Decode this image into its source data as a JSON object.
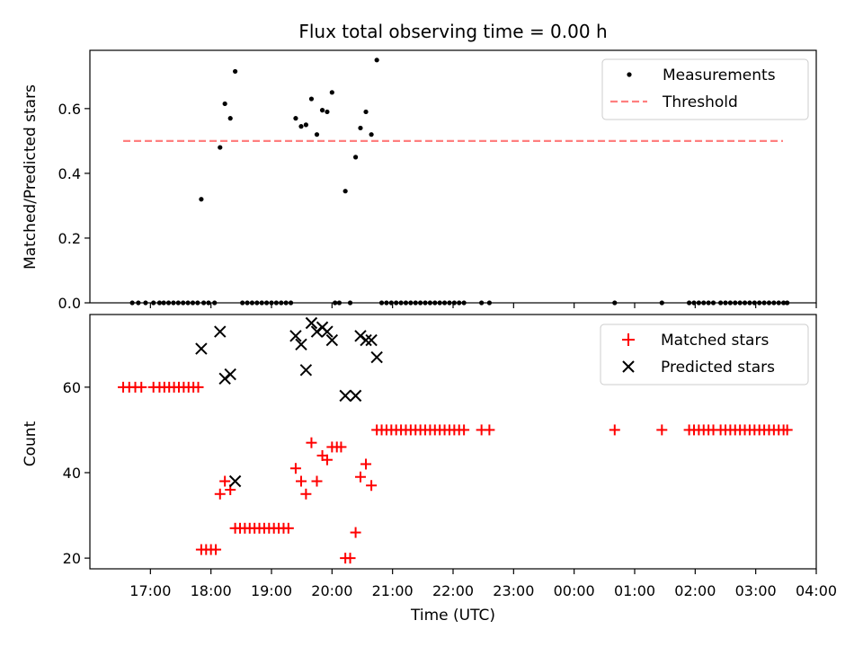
{
  "figure": {
    "title": "Flux total observing time = 0.00 h",
    "xlabel": "Time (UTC)",
    "x_tick_labels": [
      "17:00",
      "18:00",
      "19:00",
      "20:00",
      "21:00",
      "22:00",
      "23:00",
      "00:00",
      "01:00",
      "02:00",
      "03:00",
      "04:00"
    ]
  },
  "chart_data": [
    {
      "type": "scatter",
      "title": "Flux total observing time = 0.00 h",
      "xlabel": "",
      "ylabel": "Matched/Predicted stars",
      "x_unit": "hours since 16:00 UTC (axis shows clock time)",
      "xlim": [
        0.0,
        12.0
      ],
      "ylim": [
        0.0,
        0.78
      ],
      "y_ticks": [
        0.0,
        0.2,
        0.4,
        0.6
      ],
      "y_tick_labels": [
        "0.0",
        "0.2",
        "0.4",
        "0.6"
      ],
      "grid": false,
      "legend": {
        "placement": "top-right",
        "entries": [
          "Measurements",
          "Threshold"
        ]
      },
      "series": [
        {
          "name": "Measurements",
          "marker": "dot",
          "color": "#000000",
          "points": [
            [
              0.7,
              0
            ],
            [
              0.8,
              0
            ],
            [
              0.92,
              0
            ],
            [
              1.05,
              0
            ],
            [
              1.15,
              0
            ],
            [
              1.22,
              0
            ],
            [
              1.3,
              0
            ],
            [
              1.38,
              0
            ],
            [
              1.46,
              0
            ],
            [
              1.54,
              0
            ],
            [
              1.62,
              0
            ],
            [
              1.7,
              0
            ],
            [
              1.78,
              0
            ],
            [
              1.88,
              0
            ],
            [
              1.96,
              0
            ],
            [
              2.06,
              0
            ],
            [
              1.84,
              0.32
            ],
            [
              2.15,
              0.48
            ],
            [
              2.23,
              0.615
            ],
            [
              2.32,
              0.57
            ],
            [
              2.4,
              0.715
            ],
            [
              2.52,
              0
            ],
            [
              2.6,
              0
            ],
            [
              2.68,
              0
            ],
            [
              2.76,
              0
            ],
            [
              2.84,
              0
            ],
            [
              2.92,
              0
            ],
            [
              3.0,
              0
            ],
            [
              3.08,
              0
            ],
            [
              3.16,
              0
            ],
            [
              3.24,
              0
            ],
            [
              3.32,
              0
            ],
            [
              3.4,
              0.57
            ],
            [
              3.49,
              0.545
            ],
            [
              3.57,
              0.55
            ],
            [
              3.66,
              0.63
            ],
            [
              3.75,
              0.52
            ],
            [
              3.84,
              0.595
            ],
            [
              3.92,
              0.59
            ],
            [
              4.0,
              0.65
            ],
            [
              4.05,
              0
            ],
            [
              4.12,
              0
            ],
            [
              4.22,
              0.345
            ],
            [
              4.3,
              0
            ],
            [
              4.39,
              0.45
            ],
            [
              4.47,
              0.54
            ],
            [
              4.56,
              0.59
            ],
            [
              4.65,
              0.52
            ],
            [
              4.74,
              0.75
            ],
            [
              4.82,
              0
            ],
            [
              4.9,
              0
            ],
            [
              4.98,
              0
            ],
            [
              5.06,
              0
            ],
            [
              5.14,
              0
            ],
            [
              5.22,
              0
            ],
            [
              5.3,
              0
            ],
            [
              5.38,
              0
            ],
            [
              5.46,
              0
            ],
            [
              5.54,
              0
            ],
            [
              5.62,
              0
            ],
            [
              5.7,
              0
            ],
            [
              5.78,
              0
            ],
            [
              5.86,
              0
            ],
            [
              5.94,
              0
            ],
            [
              6.02,
              0
            ],
            [
              6.1,
              0
            ],
            [
              6.18,
              0
            ],
            [
              6.47,
              0
            ],
            [
              6.6,
              0
            ],
            [
              8.67,
              0
            ],
            [
              9.45,
              0
            ],
            [
              9.9,
              0
            ],
            [
              9.98,
              0
            ],
            [
              10.06,
              0
            ],
            [
              10.14,
              0
            ],
            [
              10.22,
              0
            ],
            [
              10.3,
              0
            ],
            [
              10.42,
              0
            ],
            [
              10.5,
              0
            ],
            [
              10.58,
              0
            ],
            [
              10.66,
              0
            ],
            [
              10.74,
              0
            ],
            [
              10.82,
              0
            ],
            [
              10.9,
              0
            ],
            [
              10.98,
              0
            ],
            [
              11.06,
              0
            ],
            [
              11.14,
              0
            ],
            [
              11.22,
              0
            ],
            [
              11.3,
              0
            ],
            [
              11.38,
              0
            ],
            [
              11.46,
              0
            ],
            [
              11.52,
              0
            ]
          ]
        },
        {
          "name": "Threshold",
          "style": "dashed",
          "color": "#ff7f7f",
          "points": [
            [
              0.55,
              0.5
            ],
            [
              11.45,
              0.5
            ]
          ]
        }
      ]
    },
    {
      "type": "scatter",
      "xlabel": "Time (UTC)",
      "ylabel": "Count",
      "x_unit": "hours since 16:00 UTC (axis shows clock time)",
      "xlim": [
        0.0,
        12.0
      ],
      "ylim": [
        17.5,
        77.0
      ],
      "y_ticks": [
        20,
        40,
        60
      ],
      "y_tick_labels": [
        "20",
        "40",
        "60"
      ],
      "x_ticks": [
        1,
        2,
        3,
        4,
        5,
        6,
        7,
        8,
        9,
        10,
        11,
        12
      ],
      "grid": false,
      "legend": {
        "placement": "top-right",
        "entries": [
          "Matched stars",
          "Predicted stars"
        ]
      },
      "series": [
        {
          "name": "Matched stars",
          "marker": "plus",
          "color": "#ff0000",
          "points": [
            [
              0.55,
              60
            ],
            [
              0.65,
              60
            ],
            [
              0.75,
              60
            ],
            [
              0.85,
              60
            ],
            [
              1.05,
              60
            ],
            [
              1.15,
              60
            ],
            [
              1.23,
              60
            ],
            [
              1.31,
              60
            ],
            [
              1.39,
              60
            ],
            [
              1.47,
              60
            ],
            [
              1.55,
              60
            ],
            [
              1.63,
              60
            ],
            [
              1.71,
              60
            ],
            [
              1.79,
              60
            ],
            [
              1.84,
              22
            ],
            [
              1.92,
              22
            ],
            [
              2.0,
              22
            ],
            [
              2.08,
              22
            ],
            [
              2.15,
              35
            ],
            [
              2.23,
              38
            ],
            [
              2.32,
              36
            ],
            [
              2.4,
              27
            ],
            [
              2.48,
              27
            ],
            [
              2.56,
              27
            ],
            [
              2.64,
              27
            ],
            [
              2.72,
              27
            ],
            [
              2.8,
              27
            ],
            [
              2.88,
              27
            ],
            [
              2.96,
              27
            ],
            [
              3.04,
              27
            ],
            [
              3.12,
              27
            ],
            [
              3.2,
              27
            ],
            [
              3.28,
              27
            ],
            [
              3.4,
              41
            ],
            [
              3.49,
              38
            ],
            [
              3.57,
              35
            ],
            [
              3.66,
              47
            ],
            [
              3.75,
              38
            ],
            [
              3.84,
              44
            ],
            [
              3.92,
              43
            ],
            [
              4.0,
              46
            ],
            [
              4.08,
              46
            ],
            [
              4.15,
              46
            ],
            [
              4.22,
              20
            ],
            [
              4.3,
              20
            ],
            [
              4.39,
              26
            ],
            [
              4.47,
              39
            ],
            [
              4.56,
              42
            ],
            [
              4.65,
              37
            ],
            [
              4.74,
              50
            ],
            [
              4.82,
              50
            ],
            [
              4.9,
              50
            ],
            [
              4.98,
              50
            ],
            [
              5.06,
              50
            ],
            [
              5.14,
              50
            ],
            [
              5.22,
              50
            ],
            [
              5.3,
              50
            ],
            [
              5.38,
              50
            ],
            [
              5.46,
              50
            ],
            [
              5.54,
              50
            ],
            [
              5.62,
              50
            ],
            [
              5.7,
              50
            ],
            [
              5.78,
              50
            ],
            [
              5.86,
              50
            ],
            [
              5.94,
              50
            ],
            [
              6.02,
              50
            ],
            [
              6.1,
              50
            ],
            [
              6.18,
              50
            ],
            [
              6.47,
              50
            ],
            [
              6.6,
              50
            ],
            [
              8.67,
              50
            ],
            [
              9.45,
              50
            ],
            [
              9.9,
              50
            ],
            [
              9.98,
              50
            ],
            [
              10.06,
              50
            ],
            [
              10.14,
              50
            ],
            [
              10.22,
              50
            ],
            [
              10.3,
              50
            ],
            [
              10.42,
              50
            ],
            [
              10.5,
              50
            ],
            [
              10.58,
              50
            ],
            [
              10.66,
              50
            ],
            [
              10.74,
              50
            ],
            [
              10.82,
              50
            ],
            [
              10.9,
              50
            ],
            [
              10.98,
              50
            ],
            [
              11.06,
              50
            ],
            [
              11.14,
              50
            ],
            [
              11.22,
              50
            ],
            [
              11.3,
              50
            ],
            [
              11.38,
              50
            ],
            [
              11.46,
              50
            ],
            [
              11.52,
              50
            ]
          ]
        },
        {
          "name": "Predicted stars",
          "marker": "x",
          "color": "#000000",
          "points": [
            [
              1.84,
              69
            ],
            [
              2.15,
              73
            ],
            [
              2.23,
              62
            ],
            [
              2.32,
              63
            ],
            [
              2.4,
              38
            ],
            [
              3.4,
              72
            ],
            [
              3.49,
              70
            ],
            [
              3.57,
              64
            ],
            [
              3.66,
              75
            ],
            [
              3.75,
              73
            ],
            [
              3.84,
              74
            ],
            [
              3.92,
              73
            ],
            [
              4.0,
              71
            ],
            [
              4.22,
              58
            ],
            [
              4.39,
              58
            ],
            [
              4.47,
              72
            ],
            [
              4.56,
              71
            ],
            [
              4.65,
              71
            ],
            [
              4.74,
              67
            ]
          ]
        }
      ]
    }
  ]
}
